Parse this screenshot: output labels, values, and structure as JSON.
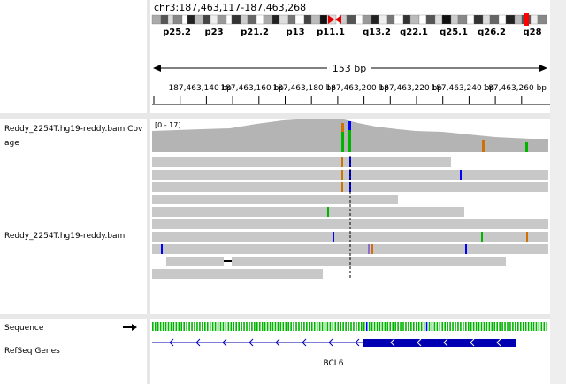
{
  "locus": "chr3:187,463,117-187,463,268",
  "ideogram_bands": [
    "p25.2",
    "p23",
    "p21.2",
    "p13",
    "p11.1",
    "q13.2",
    "q22.1",
    "q25.1",
    "q26.2",
    "q28"
  ],
  "span_label": "153 bp",
  "ruler_ticks": [
    "187,463,140 bp",
    "187,463,160 bp",
    "187,463,180 bp",
    "187,463,200 bp",
    "187,463,220 bp",
    "187,463,240 bp",
    "187,463,260 bp"
  ],
  "coverage_range": "[0 - 17]",
  "tracks": {
    "coverage_name_line1": "Reddy_2254T.hg19-reddy.bam Cov",
    "coverage_name_line2": "age",
    "alignment_name": "Reddy_2254T.hg19-reddy.bam",
    "sequence_name": "Sequence",
    "refseq_name": "RefSeq Genes"
  },
  "gene_name": "BCL6",
  "colors": {
    "coverage_gray": "#b4b4b4",
    "read_gray": "#c8c8c8",
    "mismatch_A": "#00b400",
    "mismatch_C": "#0000ff",
    "mismatch_G": "#d17105",
    "mismatch_T": "#ff0000",
    "gene_blue": "#0000b2",
    "centromere_red": "#e00000"
  },
  "icons": {
    "strand_arrow": "right-arrow-icon"
  }
}
